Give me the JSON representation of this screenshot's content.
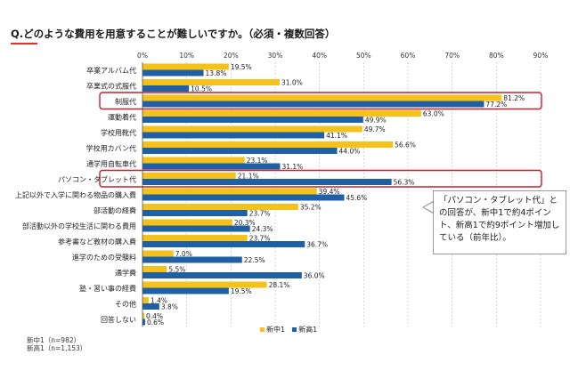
{
  "title": "Q.どのような費用を用意することが難しいですか。（必須・複数回答）",
  "notes": [
    "新中1（n=982）",
    "新高1（n=1,153）"
  ],
  "callout": "「パソコン・タブレット代」との回答が、新中1で約4ポイント、新高1で約9ポイント増加している（前年比）。",
  "colors": {
    "series1": "#f5c21b",
    "series2": "#1f5fa3",
    "highlight": "#c81e2a",
    "grid": "#b8b8b8"
  },
  "chart_data": {
    "type": "bar",
    "orientation": "horizontal",
    "title": "Q.どのような費用を用意することが難しいですか。（必須・複数回答）",
    "xlim": [
      0,
      90
    ],
    "xticks": [
      "0%",
      "10%",
      "20%",
      "30%",
      "40%",
      "50%",
      "60%",
      "70%",
      "80%",
      "90%"
    ],
    "grid": true,
    "legend_position": "bottom",
    "categories": [
      "卒業アルバム代",
      "卒業式の式服代",
      "制服代",
      "運動着代",
      "学校用靴代",
      "学校用カバン代",
      "通学用自転車代",
      "パソコン・タブレット代",
      "上記以外で入学に関わる物品の購入費",
      "部活動の経費",
      "部活動以外の学校生活に関わる費用",
      "参考書など教材の購入費",
      "進学のための受験料",
      "通学費",
      "塾・習い事の経費",
      "その他",
      "回答しない"
    ],
    "highlighted": [
      "制服代",
      "パソコン・タブレット代"
    ],
    "series": [
      {
        "name": "新中1",
        "values": [
          19.5,
          31.0,
          81.2,
          63.0,
          49.7,
          56.6,
          23.1,
          21.1,
          39.4,
          35.2,
          20.3,
          23.7,
          7.0,
          5.5,
          28.1,
          1.4,
          0.4
        ],
        "labels": [
          "19.5%",
          "31.0%",
          "81.2%",
          "63.0%",
          "49.7%",
          "56.6%",
          "23.1%",
          "21.1%",
          "39.4%",
          "35.2%",
          "20.3%",
          "23.7%",
          "7.0%",
          "5.5%",
          "28.1%",
          "1.4%",
          "0.4%"
        ]
      },
      {
        "name": "新高1",
        "values": [
          13.8,
          10.5,
          77.2,
          49.9,
          41.1,
          44.0,
          31.1,
          56.3,
          45.6,
          23.7,
          24.3,
          36.7,
          22.5,
          36.0,
          19.5,
          3.8,
          0.6
        ],
        "labels": [
          "13.8%",
          "10.5%",
          "77.2%",
          "49.9%",
          "41.1%",
          "44.0%",
          "31.1%",
          "56.3%",
          "45.6%",
          "23.7%",
          "24.3%",
          "36.7%",
          "22.5%",
          "36.0%",
          "19.5%",
          "3.8%",
          "0.6%"
        ]
      }
    ]
  }
}
